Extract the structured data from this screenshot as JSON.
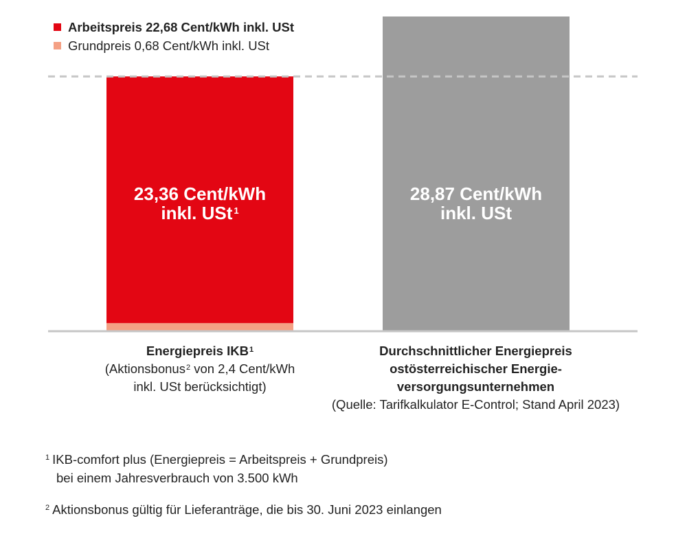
{
  "legend": [
    {
      "label": "Arbeitspreis 22,68 Cent/kWh inkl. USt",
      "color": "#e30613",
      "bold": true
    },
    {
      "label": "Grundpreis 0,68 Cent/kWh inkl. USt",
      "color": "#f4a084",
      "bold": false
    }
  ],
  "bars": [
    {
      "line1": "23,36 Cent/kWh",
      "line2": "inkl. USt",
      "sup": "1"
    },
    {
      "line1": "28,87 Cent/kWh",
      "line2": "inkl. USt"
    }
  ],
  "categories": [
    {
      "title": "Energiepreis IKB",
      "title_sup": "1",
      "line2a": "(Aktionsbonus",
      "line2_sup": "2",
      "line2b": " von 2,4 Cent/kWh",
      "line3": "inkl. USt berücksichtigt)"
    },
    {
      "line1": "Durchschnittlicher Energiepreis",
      "line2": "ostösterreichischer Energie-",
      "line3": "versorgungsunternehmen",
      "line4": "(Quelle: Tarifkalkulator E-Control; Stand April 2023)"
    }
  ],
  "footnotes": [
    {
      "num": "1",
      "line1": "IKB-comfort plus (Energiepreis = Arbeitspreis + Grundpreis)",
      "line2": "bei einem Jahresverbrauch von 3.500 kWh"
    },
    {
      "num": "2",
      "line1": "Aktionsbonus gültig für Lieferanträge, die bis 30. Juni 2023 einlangen"
    }
  ],
  "chart_data": {
    "type": "bar",
    "stacked": true,
    "categories": [
      "Energiepreis IKB",
      "Durchschnittlicher Energiepreis ostösterreichischer Energieversorgungsunternehmen"
    ],
    "series": [
      {
        "name": "Grundpreis 0,68 Cent/kWh inkl. USt",
        "values": [
          0.68,
          0
        ],
        "color": "#f4a084"
      },
      {
        "name": "Arbeitspreis 22,68 Cent/kWh inkl. USt",
        "values": [
          22.68,
          0
        ],
        "color": "#e30613"
      },
      {
        "name": "",
        "values": [
          0,
          28.87
        ],
        "color": "#9d9d9d"
      }
    ],
    "totals": [
      23.36,
      28.87
    ],
    "reference_line": 23.36,
    "ylim": [
      0,
      28.87
    ],
    "unit": "Cent/kWh",
    "legend_position": "top-left",
    "grid": false,
    "colors": {
      "axis": "#c6c6c6",
      "reference": "#c6c6c6"
    }
  }
}
